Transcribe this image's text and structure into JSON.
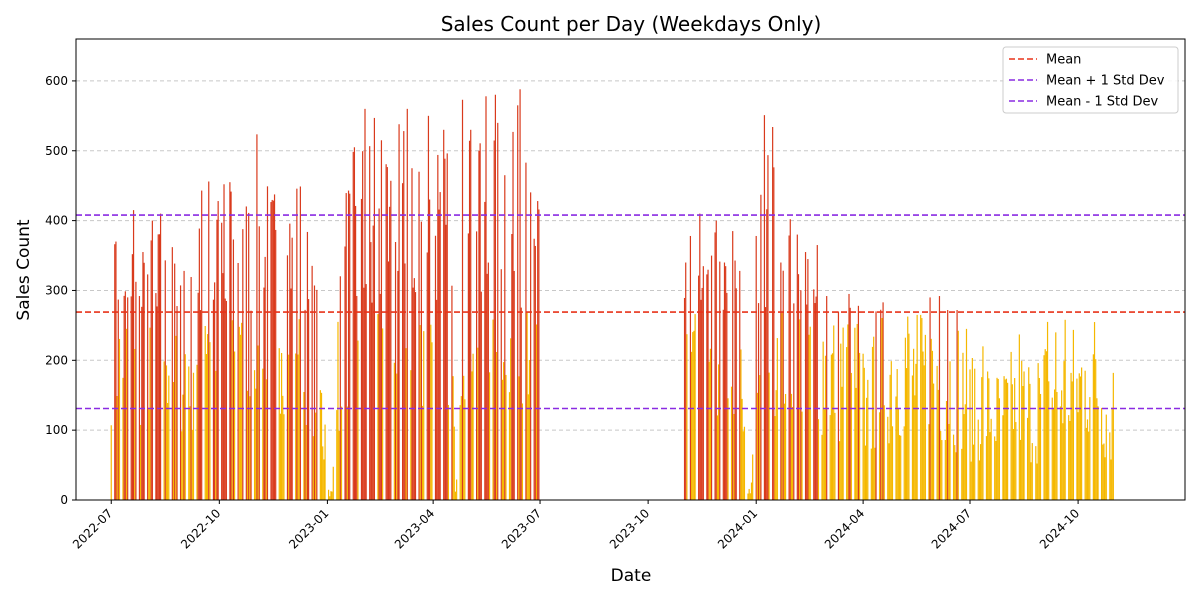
{
  "chart_data": {
    "type": "bar",
    "title": "Sales Count per Day (Weekdays Only)",
    "xlabel": "Date",
    "ylabel": "Sales Count",
    "x_axis": "date",
    "xlim": [
      "2022-06-01",
      "2024-12-31"
    ],
    "ylim": [
      0,
      660
    ],
    "y_ticks": [
      0,
      100,
      200,
      300,
      400,
      500,
      600
    ],
    "x_ticks": [
      "2022-07",
      "2022-10",
      "2023-01",
      "2023-04",
      "2023-07",
      "2023-10",
      "2024-01",
      "2024-04",
      "2024-07",
      "2024-10"
    ],
    "grid": "y-dashed",
    "legend_position": "top-right",
    "colors": {
      "bar_above_mean": "#d93a1c",
      "bar_below_mean": "#f5b800",
      "mean": "#e8331a",
      "std": "#8a2be2"
    },
    "reference_lines": [
      {
        "name": "Mean",
        "value": 269,
        "color": "#e8331a"
      },
      {
        "name": "Mean + 1 Std Dev",
        "value": 408,
        "color": "#8a2be2"
      },
      {
        "name": "Mean - 1 Std Dev",
        "value": 131,
        "color": "#8a2be2"
      }
    ],
    "segments": [
      {
        "start": "2022-07-01",
        "peaks": [
          [
            "2022-07-02",
            428
          ],
          [
            "2022-07-05",
            370
          ],
          [
            "2022-07-10",
            345
          ],
          [
            "2022-07-20",
            415
          ],
          [
            "2022-07-28",
            355
          ],
          [
            "2022-08-05",
            400
          ],
          [
            "2022-08-12",
            410
          ],
          [
            "2022-08-22",
            362
          ],
          [
            "2022-09-01",
            328
          ],
          [
            "2022-09-10",
            350
          ],
          [
            "2022-09-16",
            443
          ],
          [
            "2022-09-22",
            456
          ],
          [
            "2022-09-30",
            428
          ],
          [
            "2022-10-05",
            452
          ],
          [
            "2022-10-10",
            455
          ],
          [
            "2022-10-16",
            500
          ],
          [
            "2022-10-22",
            450
          ],
          [
            "2022-10-30",
            501
          ],
          [
            "2022-11-05",
            549
          ],
          [
            "2022-11-12",
            465
          ],
          [
            "2022-11-20",
            473
          ],
          [
            "2022-11-26",
            492
          ],
          [
            "2022-12-04",
            490
          ],
          [
            "2022-12-10",
            487
          ],
          [
            "2022-12-17",
            380
          ],
          [
            "2022-12-24",
            296
          ],
          [
            "2022-12-30",
            108
          ],
          [
            "2023-01-01",
            25
          ],
          [
            "2023-01-05",
            12
          ],
          [
            "2023-01-10",
            255
          ],
          [
            "2023-01-15",
            470
          ],
          [
            "2023-01-24",
            505
          ],
          [
            "2023-02-02",
            560
          ],
          [
            "2023-02-10",
            547
          ],
          [
            "2023-02-16",
            515
          ],
          [
            "2023-02-24",
            457
          ],
          [
            "2023-03-03",
            538
          ],
          [
            "2023-03-10",
            560
          ],
          [
            "2023-03-14",
            475
          ],
          [
            "2023-03-20",
            470
          ],
          [
            "2023-03-28",
            550
          ],
          [
            "2023-04-05",
            494
          ],
          [
            "2023-04-10",
            530
          ],
          [
            "2023-04-16",
            494
          ],
          [
            "2023-04-20",
            12
          ],
          [
            "2023-04-26",
            573
          ],
          [
            "2023-05-03",
            530
          ],
          [
            "2023-05-10",
            500
          ],
          [
            "2023-05-16",
            578
          ],
          [
            "2023-05-20",
            631
          ],
          [
            "2023-05-27",
            562
          ],
          [
            "2023-06-01",
            465
          ],
          [
            "2023-06-08",
            527
          ],
          [
            "2023-06-14",
            588
          ],
          [
            "2023-06-19",
            483
          ],
          [
            "2023-06-24",
            463
          ],
          [
            "2023-06-29",
            428
          ]
        ],
        "end": "2023-06-30"
      },
      {
        "start": "2023-11-01",
        "peaks": [
          [
            "2023-11-02",
            340
          ],
          [
            "2023-11-06",
            378
          ],
          [
            "2023-11-14",
            410
          ],
          [
            "2023-11-20",
            323
          ],
          [
            "2023-11-28",
            400
          ],
          [
            "2023-12-05",
            340
          ],
          [
            "2023-12-12",
            385
          ],
          [
            "2023-12-18",
            328
          ],
          [
            "2023-12-24",
            10
          ],
          [
            "2023-12-28",
            25
          ],
          [
            "2024-01-01",
            378
          ],
          [
            "2024-01-05",
            437
          ],
          [
            "2024-01-08",
            551
          ],
          [
            "2024-01-15",
            534
          ],
          [
            "2024-01-22",
            340
          ],
          [
            "2024-01-30",
            402
          ],
          [
            "2024-02-05",
            380
          ],
          [
            "2024-02-12",
            355
          ],
          [
            "2024-02-22",
            365
          ],
          [
            "2024-03-01",
            292
          ],
          [
            "2024-03-10",
            290
          ],
          [
            "2024-03-20",
            295
          ],
          [
            "2024-03-28",
            278
          ],
          [
            "2024-04-05",
            172
          ],
          [
            "2024-04-12",
            270
          ],
          [
            "2024-04-20",
            300
          ],
          [
            "2024-04-28",
            295
          ],
          [
            "2024-05-05",
            337
          ],
          [
            "2024-05-12",
            284
          ],
          [
            "2024-05-20",
            265
          ],
          [
            "2024-05-28",
            290
          ],
          [
            "2024-06-05",
            292
          ],
          [
            "2024-06-12",
            272
          ],
          [
            "2024-06-20",
            272
          ],
          [
            "2024-06-28",
            245
          ],
          [
            "2024-07-05",
            188
          ],
          [
            "2024-07-12",
            220
          ],
          [
            "2024-07-20",
            192
          ],
          [
            "2024-07-28",
            192
          ],
          [
            "2024-08-05",
            212
          ],
          [
            "2024-08-12",
            237
          ],
          [
            "2024-08-20",
            190
          ],
          [
            "2024-08-28",
            196
          ],
          [
            "2024-09-05",
            255
          ],
          [
            "2024-09-12",
            240
          ],
          [
            "2024-09-20",
            258
          ],
          [
            "2024-09-28",
            255
          ],
          [
            "2024-10-05",
            262
          ],
          [
            "2024-10-12",
            300
          ],
          [
            "2024-10-20",
            250
          ],
          [
            "2024-10-27",
            182
          ],
          [
            "2024-10-31",
            182
          ]
        ],
        "end": "2024-10-31"
      }
    ]
  }
}
